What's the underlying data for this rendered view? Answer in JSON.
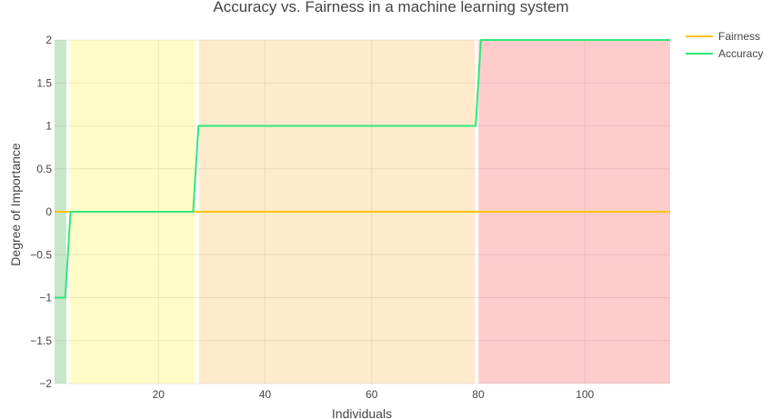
{
  "chart_data": {
    "type": "line",
    "title": "Accuracy vs. Fairness in a machine learning system",
    "xlabel": "Individuals",
    "ylabel": "Degree of Importance",
    "xlim": [
      0.5,
      116
    ],
    "ylim": [
      -2,
      2
    ],
    "grid": true,
    "legend_position": "top-right",
    "x_ticks": [
      20,
      40,
      60,
      80,
      100
    ],
    "y_ticks": [
      2,
      1.5,
      1,
      0.5,
      0,
      -0.5,
      -1,
      -1.5,
      -2
    ],
    "y_tick_labels": [
      "2",
      "1.5",
      "1",
      "0.5",
      "0",
      "−0.5",
      "−1",
      "−1.5",
      "−2"
    ],
    "regions": [
      {
        "x0": 0.5,
        "x1": 2.7,
        "color": "#c8e6c9"
      },
      {
        "x0": 3.3,
        "x1": 26.9,
        "color": "#fffcc8"
      },
      {
        "x0": 27.6,
        "x1": 79.4,
        "color": "#ffebcc"
      },
      {
        "x0": 80.1,
        "x1": 116,
        "color": "#ffcccc"
      }
    ],
    "series": [
      {
        "name": "Fairness",
        "color": "#ffc20e",
        "x": [
          0.5,
          116
        ],
        "y": [
          0,
          0
        ]
      },
      {
        "name": "Accuracy",
        "color": "#2ee87a",
        "x": [
          0.5,
          2.5,
          3.5,
          26.5,
          27.5,
          79.5,
          80.5,
          116
        ],
        "y": [
          -1,
          -1,
          0,
          0,
          1,
          1,
          2,
          2
        ]
      }
    ]
  }
}
